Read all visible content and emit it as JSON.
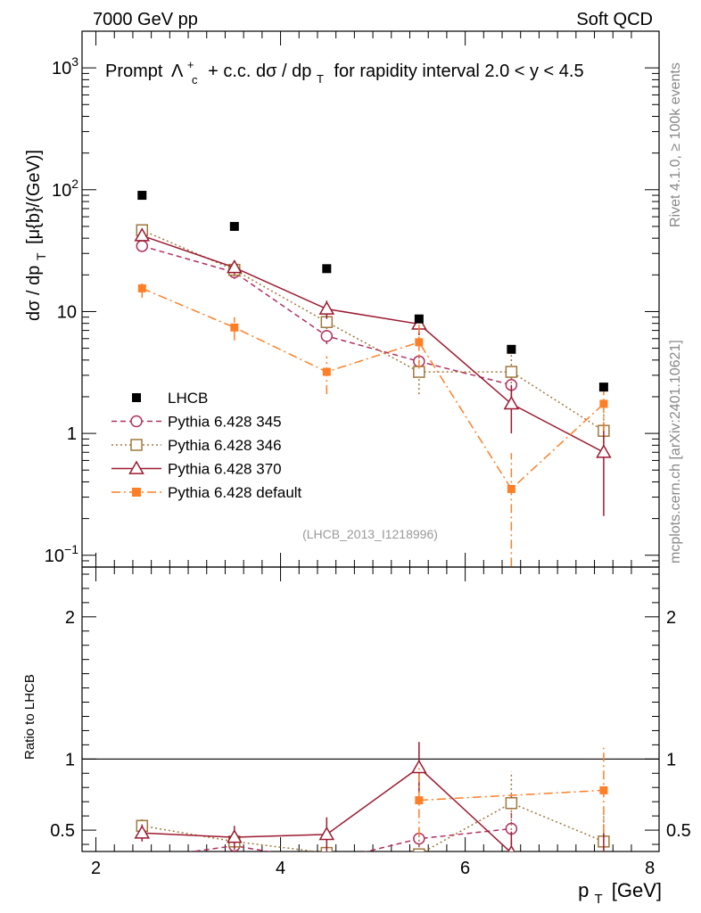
{
  "header": {
    "energy": "7000 GeV pp",
    "category": "Soft QCD",
    "side_rivet": "Rivet 4.1.0, ≥ 100k events",
    "side_mcplots": "mcplots.cern.ch [arXiv:2401.10621]",
    "analysis_id": "(LHCB_2013_I1218996)"
  },
  "chart_data": [
    {
      "type": "scatter",
      "panel": "main",
      "title_prefix": "Prompt",
      "title_particle": "Λ",
      "title_sub": "c",
      "title_sup": "+",
      "title_suffix": "+ c.c.  dσ / dp",
      "title_suffix_sub": "T",
      "title_tail": "for rapidity interval 2.0 < y < 4.5",
      "ylabel": "dσ / dp",
      "ylabel_sub": "T",
      "ylabel_tail": "[μ{b}/(GeV)]",
      "yscale": "log",
      "ylim": [
        0.08,
        2000
      ],
      "xlim": [
        1.85,
        8.1
      ],
      "y_ticks": [
        {
          "value": 0.1,
          "base": "10",
          "exp": "−1"
        },
        {
          "value": 1,
          "base": "1",
          "exp": ""
        },
        {
          "value": 10,
          "base": "10",
          "exp": ""
        },
        {
          "value": 100,
          "base": "10",
          "exp": "2"
        },
        {
          "value": 1000,
          "base": "10",
          "exp": "3"
        }
      ],
      "series": [
        {
          "name": "LHCB",
          "legend_label": "LHCB",
          "color": "#000000",
          "marker": "square-filled",
          "line": "none",
          "x": [
            2.5,
            3.5,
            4.5,
            5.5,
            6.5,
            7.5
          ],
          "y": [
            90,
            50,
            22.5,
            8.7,
            4.9,
            2.4
          ],
          "err": [
            0,
            0,
            0,
            0,
            0,
            0
          ]
        },
        {
          "name": "Pythia 6.428 345",
          "legend_label": "Pythia 6.428 345",
          "color": "#b03060",
          "marker": "circle-open",
          "line": "dashed",
          "x": [
            2.5,
            3.5,
            4.5,
            5.5,
            6.5
          ],
          "y": [
            34.5,
            21,
            6.3,
            3.9,
            2.5
          ],
          "err": [
            3,
            2.5,
            0.9,
            0.5,
            0.5
          ]
        },
        {
          "name": "Pythia 6.428 346",
          "legend_label": "Pythia 6.428 346",
          "color": "#a0783c",
          "marker": "square-open",
          "line": "dotted",
          "x": [
            2.5,
            3.5,
            4.5,
            5.5,
            6.5,
            7.5
          ],
          "y": [
            46.5,
            22,
            8.2,
            3.2,
            3.2,
            1.05
          ],
          "err": [
            4,
            2.5,
            1,
            1.1,
            1.2,
            0.4
          ]
        },
        {
          "name": "Pythia 6.428 370",
          "legend_label": "Pythia 6.428 370",
          "color": "#9b1b30",
          "marker": "triangle-open",
          "line": "solid",
          "x": [
            2.5,
            3.5,
            4.5,
            5.5,
            6.5,
            7.5
          ],
          "y": [
            42,
            23,
            10.5,
            7.9,
            1.75,
            0.7
          ],
          "err": [
            3.5,
            2.8,
            1.8,
            1.5,
            0.75,
            0.49
          ]
        },
        {
          "name": "Pythia 6.428 default",
          "legend_label": "Pythia 6.428 default",
          "color": "#ff7f27",
          "marker": "square-filled",
          "line": "dashdot",
          "x": [
            2.5,
            3.5,
            4.5,
            5.5,
            6.5,
            7.5
          ],
          "y": [
            15.5,
            7.4,
            3.2,
            5.6,
            0.35,
            1.75
          ],
          "err": [
            2.5,
            1.6,
            1.1,
            2.2,
            0.34,
            0.7
          ]
        }
      ]
    },
    {
      "type": "scatter",
      "panel": "ratio",
      "ylabel": "Ratio to LHCB",
      "xlabel": "p",
      "xlabel_sub": "T",
      "xlabel_tail": "[GeV]",
      "ylim": [
        0.35,
        2.35
      ],
      "xlim": [
        1.85,
        8.1
      ],
      "reference_line": 1,
      "x_ticks": [
        {
          "value": 2,
          "label": "2"
        },
        {
          "value": 4,
          "label": "4"
        },
        {
          "value": 6,
          "label": "6"
        },
        {
          "value": 8,
          "label": "8"
        }
      ],
      "y_ticks": [
        {
          "value": 0.5,
          "label": "0.5"
        },
        {
          "value": 1,
          "label": "1"
        },
        {
          "value": 2,
          "label": "2"
        }
      ],
      "series": [
        {
          "name": "Pythia 6.428 345",
          "color": "#b03060",
          "marker": "circle-open",
          "line": "dashed",
          "x": [
            2.5,
            3.5,
            4.5,
            5.5,
            6.5
          ],
          "y": [
            0.3,
            0.39,
            0.28,
            0.44,
            0.51
          ],
          "err": [
            0.03,
            0.04,
            0.04,
            0.06,
            0.24
          ]
        },
        {
          "name": "Pythia 6.428 346",
          "color": "#a0783c",
          "marker": "square-open",
          "line": "dotted",
          "x": [
            2.5,
            3.5,
            4.5,
            5.5,
            6.5,
            7.5
          ],
          "y": [
            0.53,
            0.42,
            0.34,
            0.33,
            0.69,
            0.42
          ],
          "err": [
            0.06,
            0.06,
            0.06,
            0.13,
            0.22,
            0.18
          ]
        },
        {
          "name": "Pythia 6.428 370",
          "color": "#9b1b30",
          "marker": "triangle-open",
          "line": "solid",
          "x": [
            2.5,
            3.5,
            4.5,
            5.5,
            6.5,
            7.5
          ],
          "y": [
            0.48,
            0.45,
            0.47,
            0.94,
            0.34,
            0.28
          ],
          "err": [
            0.06,
            0.08,
            0.12,
            0.18,
            0.15,
            0.2
          ]
        },
        {
          "name": "Pythia 6.428 default",
          "color": "#ff7f27",
          "marker": "square-filled",
          "line": "dashdot",
          "x": [
            5.5,
            7.5
          ],
          "y": [
            0.71,
            0.78
          ],
          "err": [
            0.25,
            0.3
          ],
          "note": "other points below visible range"
        }
      ]
    }
  ]
}
